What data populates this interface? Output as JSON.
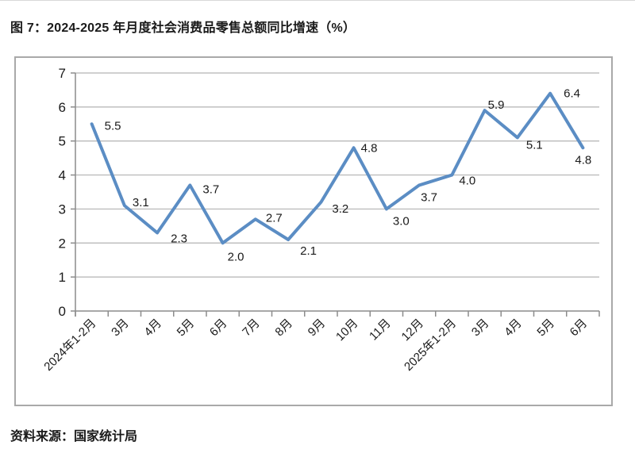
{
  "title": "图 7：2024-2025 年月度社会消费品零售总额同比增速（%）",
  "source": "资料来源：国家统计局",
  "chart_data": {
    "type": "line",
    "title": "图 7：2024-2025 年月度社会消费品零售总额同比增速（%）",
    "categories": [
      "2024年1-2月",
      "3月",
      "4月",
      "5月",
      "6月",
      "7月",
      "8月",
      "9月",
      "10月",
      "11月",
      "12月",
      "2025年1-2月",
      "3月",
      "4月",
      "5月",
      "6月"
    ],
    "series": [
      {
        "name": "社会消费品零售总额同比增速",
        "values": [
          5.5,
          3.1,
          2.3,
          3.7,
          2.0,
          2.7,
          2.1,
          3.2,
          4.8,
          3.0,
          3.7,
          4.0,
          5.9,
          5.1,
          6.4,
          4.8
        ],
        "labels": [
          "5.5",
          "3.1",
          "2.3",
          "3.7",
          "2.0",
          "2.7",
          "2.1",
          "3.2",
          "4.8",
          "3.0",
          "3.7",
          "4.0",
          "5.9",
          "5.1",
          "6.4",
          "4.8"
        ]
      }
    ],
    "xlabel": "",
    "ylabel": "",
    "ylim": [
      0,
      7
    ],
    "yticks": [
      0,
      1,
      2,
      3,
      4,
      5,
      6,
      7
    ],
    "grid": "horizontal",
    "legend": "none",
    "data_labels": true,
    "colors": {
      "line": "#5b8dc4",
      "grid": "#b3b3b3",
      "axis": "#8c8c8c",
      "text": "#1a1a1a",
      "border": "#a9a9a9"
    }
  }
}
